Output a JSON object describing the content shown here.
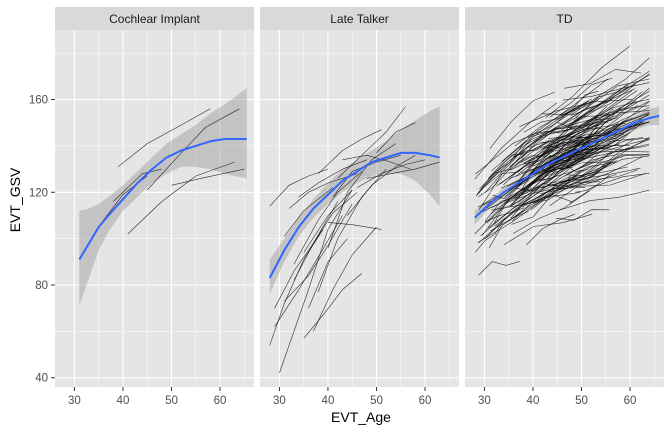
{
  "chart_data": {
    "type": "line",
    "xlabel": "EVT_Age",
    "ylabel": "EVT_GSV",
    "xlim": [
      26,
      67
    ],
    "ylim": [
      36,
      190
    ],
    "x_ticks": [
      30,
      40,
      50,
      60
    ],
    "y_ticks": [
      40,
      80,
      120,
      160
    ],
    "grid": true,
    "colors": {
      "panel_bg": "#e5e5e5",
      "strip_bg": "#d9d9d9",
      "grid": "#ffffff",
      "trajectory": "#000000",
      "fit": "#3366ff",
      "ribbon": "#9a9a9a"
    },
    "facets": [
      {
        "label": "Cochlear Implant",
        "fit": {
          "x": [
            31,
            33,
            35,
            37,
            40,
            43,
            46,
            49,
            52,
            55,
            58,
            61,
            63,
            65.5
          ],
          "y": [
            91,
            98,
            105,
            110,
            117,
            124,
            130,
            135,
            138,
            140,
            142,
            143,
            143,
            143
          ],
          "lower": [
            71,
            83,
            95,
            103,
            112,
            118,
            124,
            128,
            131,
            131,
            130,
            128,
            127,
            126
          ],
          "upper": [
            112,
            113,
            115,
            118,
            123,
            129,
            135,
            141,
            145,
            149,
            154,
            158,
            161,
            165
          ]
        },
        "trajectories": [
          {
            "x": [
              31,
              36,
              40,
              45
            ],
            "y": [
              91,
              108,
              119,
              127
            ]
          },
          {
            "x": [
              39,
              45,
              52,
              58
            ],
            "y": [
              131,
              141,
              149,
              156
            ]
          },
          {
            "x": [
              41,
              48,
              55,
              63
            ],
            "y": [
              102,
              116,
              127,
              133
            ]
          },
          {
            "x": [
              45,
              52,
              57,
              64
            ],
            "y": [
              121,
              137,
              148,
              156
            ]
          },
          {
            "x": [
              38,
              44,
              48
            ],
            "y": [
              116,
              128,
              130
            ]
          },
          {
            "x": [
              50,
              56,
              65
            ],
            "y": [
              123,
              126,
              130
            ]
          }
        ]
      },
      {
        "label": "Late Talker",
        "fit": {
          "x": [
            28,
            31,
            34,
            37,
            40,
            43,
            46,
            49,
            52,
            55,
            58,
            61,
            63
          ],
          "y": [
            83,
            95,
            105,
            113,
            119,
            125,
            129,
            133,
            135,
            137,
            137,
            136,
            135
          ],
          "lower": [
            76,
            90,
            101,
            109,
            115,
            120,
            124,
            127,
            128,
            128,
            125,
            119,
            114
          ],
          "upper": [
            91,
            100,
            109,
            117,
            124,
            130,
            134,
            138,
            142,
            147,
            151,
            155,
            157
          ]
        },
        "trajectories": [
          {
            "x": [
              28,
              32,
              36,
              40
            ],
            "y": [
              114,
              123,
              127,
              130
            ]
          },
          {
            "x": [
              28,
              31,
              35,
              39
            ],
            "y": [
              54,
              72,
              91,
              104
            ]
          },
          {
            "x": [
              29,
              33,
              37,
              42
            ],
            "y": [
              70,
              86,
              98,
              116
            ]
          },
          {
            "x": [
              30,
              36,
              40,
              45
            ],
            "y": [
              42,
              78,
              104,
              121
            ]
          },
          {
            "x": [
              29,
              34,
              38,
              43
            ],
            "y": [
              62,
              78,
              92,
              110
            ]
          },
          {
            "x": [
              31,
              35,
              38,
              41
            ],
            "y": [
              101,
              112,
              117,
              122
            ]
          },
          {
            "x": [
              32,
              36,
              40,
              46
            ],
            "y": [
              113,
              120,
              124,
              128
            ]
          },
          {
            "x": [
              33,
              38,
              42,
              47
            ],
            "y": [
              89,
              108,
              120,
              129
            ]
          },
          {
            "x": [
              34,
              38,
              43,
              48
            ],
            "y": [
              118,
              124,
              130,
              134
            ]
          },
          {
            "x": [
              35,
              40,
              45
            ],
            "y": [
              94,
              110,
              121
            ]
          },
          {
            "x": [
              36,
              40,
              44
            ],
            "y": [
              70,
              90,
              100
            ]
          },
          {
            "x": [
              37,
              41,
              45,
              50
            ],
            "y": [
              60,
              78,
              93,
              105
            ]
          },
          {
            "x": [
              38,
              42,
              47,
              52
            ],
            "y": [
              77,
              100,
              118,
              130
            ]
          },
          {
            "x": [
              40,
              44,
              49,
              54
            ],
            "y": [
              96,
              120,
              134,
              141
            ]
          },
          {
            "x": [
              40,
              45,
              51
            ],
            "y": [
              107,
              106,
              104
            ]
          },
          {
            "x": [
              41,
              45,
              50,
              55
            ],
            "y": [
              118,
              129,
              133,
              136
            ]
          },
          {
            "x": [
              42,
              47,
              52,
              56
            ],
            "y": [
              126,
              136,
              146,
              157
            ]
          },
          {
            "x": [
              43,
              48,
              53,
              57
            ],
            "y": [
              134,
              136,
              133,
              130
            ]
          },
          {
            "x": [
              44,
              49,
              54,
              58
            ],
            "y": [
              110,
              123,
              131,
              136
            ]
          },
          {
            "x": [
              46,
              51,
              56,
              60
            ],
            "y": [
              122,
              128,
              132,
              134
            ]
          },
          {
            "x": [
              31,
              36,
              40,
              45
            ],
            "y": [
              73,
              84,
              97,
              115
            ]
          },
          {
            "x": [
              33,
              37,
              41,
              46
            ],
            "y": [
              82,
              98,
              111,
              120
            ]
          },
          {
            "x": [
              35,
              39,
              43,
              47
            ],
            "y": [
              57,
              67,
              78,
              85
            ]
          },
          {
            "x": [
              38,
              43,
              47,
              51
            ],
            "y": [
              128,
              138,
              143,
              147
            ]
          },
          {
            "x": [
              48,
              53,
              58,
              63
            ],
            "y": [
              126,
              128,
              130,
              133
            ]
          },
          {
            "x": [
              50,
              54,
              58
            ],
            "y": [
              137,
              146,
              150
            ]
          }
        ]
      },
      {
        "label": "TD",
        "fit": {
          "x": [
            28,
            31,
            34,
            37,
            40,
            43,
            46,
            49,
            52,
            55,
            58,
            61,
            64,
            66
          ],
          "y": [
            109,
            115,
            120,
            124,
            128,
            132,
            135,
            138,
            141,
            144,
            147,
            150,
            152,
            153
          ],
          "lower": [
            106,
            113,
            118,
            122,
            126,
            130,
            134,
            137,
            140,
            143,
            145,
            147,
            149,
            149
          ],
          "upper": [
            112,
            117,
            122,
            126,
            130,
            134,
            137,
            140,
            143,
            146,
            149,
            153,
            156,
            157
          ]
        }
      }
    ]
  }
}
